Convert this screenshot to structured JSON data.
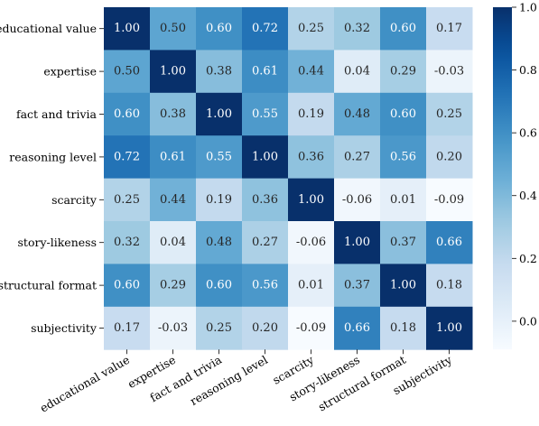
{
  "chart_data": {
    "type": "heatmap",
    "title": "",
    "xlabel": "",
    "ylabel": "",
    "x_categories": [
      "educational value",
      "expertise",
      "fact and trivia",
      "reasoning level",
      "scarcity",
      "story-likeness",
      "structural format",
      "subjectivity"
    ],
    "y_categories": [
      "educational value",
      "expertise",
      "fact and trivia",
      "reasoning level",
      "scarcity",
      "story-likeness",
      "structural format",
      "subjectivity"
    ],
    "values": [
      [
        1.0,
        0.5,
        0.6,
        0.72,
        0.25,
        0.32,
        0.6,
        0.17
      ],
      [
        0.5,
        1.0,
        0.38,
        0.61,
        0.44,
        0.04,
        0.29,
        -0.03
      ],
      [
        0.6,
        0.38,
        1.0,
        0.55,
        0.19,
        0.48,
        0.6,
        0.25
      ],
      [
        0.72,
        0.61,
        0.55,
        1.0,
        0.36,
        0.27,
        0.56,
        0.2
      ],
      [
        0.25,
        0.44,
        0.19,
        0.36,
        1.0,
        -0.06,
        0.01,
        -0.09
      ],
      [
        0.32,
        0.04,
        0.48,
        0.27,
        -0.06,
        1.0,
        0.37,
        0.66
      ],
      [
        0.6,
        0.29,
        0.6,
        0.56,
        0.01,
        0.37,
        1.0,
        0.18
      ],
      [
        0.17,
        -0.03,
        0.25,
        0.2,
        -0.09,
        0.66,
        0.18,
        1.0
      ]
    ],
    "value_labels_shown": true,
    "colormap": "Blues",
    "color_range": [
      -0.09,
      1.0
    ],
    "colorbar": {
      "position": "right",
      "ticks": [
        0.0,
        0.2,
        0.4,
        0.6,
        0.8,
        1.0
      ],
      "tick_labels": [
        "0.0",
        "0.2",
        "0.4",
        "0.6",
        "0.8",
        "1.0"
      ]
    },
    "x_tick_rotation_deg": 30,
    "grid": false
  }
}
